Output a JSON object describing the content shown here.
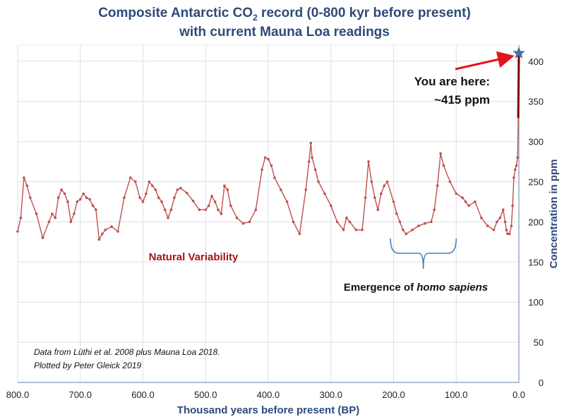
{
  "chart_data": {
    "type": "line",
    "title_line1_pre": "Composite Antarctic CO",
    "title_line1_sub": "2",
    "title_line1_post": " record (0-800 kyr before present)",
    "title_line2": "with current Mauna Loa readings",
    "xlabel": "Thousand years before present (BP)",
    "ylabel": "Concentration in ppm",
    "xlim": [
      800,
      0
    ],
    "ylim": [
      0,
      420
    ],
    "x_ticks": [
      "800.0",
      "700.0",
      "600.0",
      "500.0",
      "400.0",
      "300.0",
      "200.0",
      "100.0",
      "0.0"
    ],
    "x_tick_values": [
      800,
      700,
      600,
      500,
      400,
      300,
      200,
      100,
      0
    ],
    "y_ticks": [
      "0",
      "50",
      "100",
      "150",
      "200",
      "250",
      "300",
      "350",
      "400"
    ],
    "y_tick_values": [
      0,
      50,
      100,
      150,
      200,
      250,
      300,
      350,
      400
    ],
    "grid": true,
    "series_color": "#c0504d",
    "series": [
      {
        "x": [
          800,
          795,
          790,
          785,
          780,
          770,
          760,
          750,
          745,
          740,
          735,
          730,
          725,
          720,
          715,
          710,
          705,
          700,
          695,
          690,
          685,
          680,
          675,
          670,
          665,
          660,
          650,
          640,
          630,
          620,
          612,
          605,
          600,
          595,
          590,
          585,
          580,
          575,
          570,
          565,
          560,
          555,
          550,
          545,
          540,
          530,
          520,
          510,
          500,
          495,
          490,
          485,
          480,
          475,
          470,
          465,
          460,
          450,
          440,
          430,
          420,
          410,
          405,
          400,
          395,
          390,
          380,
          370,
          360,
          350,
          340,
          335,
          332,
          330,
          325,
          320,
          310,
          300,
          290,
          280,
          275,
          270,
          260,
          250,
          245,
          240,
          235,
          230,
          225,
          220,
          215,
          210,
          200,
          195,
          190,
          185,
          180,
          170,
          160,
          150,
          140,
          135,
          130,
          125,
          120,
          110,
          100,
          90,
          85,
          80,
          70,
          60,
          50,
          40,
          35,
          30,
          25,
          22,
          20,
          18,
          15,
          12,
          10,
          8,
          6,
          4,
          2,
          1,
          0
        ],
        "y": [
          188,
          205,
          255,
          245,
          230,
          210,
          180,
          200,
          210,
          205,
          230,
          240,
          235,
          225,
          200,
          210,
          225,
          228,
          235,
          230,
          228,
          220,
          215,
          178,
          185,
          190,
          194,
          188,
          230,
          255,
          250,
          230,
          225,
          235,
          250,
          245,
          240,
          230,
          225,
          215,
          205,
          215,
          230,
          240,
          242,
          236,
          226,
          215,
          215,
          220,
          232,
          225,
          215,
          210,
          245,
          240,
          220,
          205,
          198,
          200,
          215,
          265,
          280,
          278,
          270,
          255,
          240,
          225,
          200,
          185,
          240,
          275,
          298,
          280,
          265,
          250,
          235,
          220,
          200,
          190,
          205,
          200,
          190,
          190,
          230,
          275,
          250,
          230,
          215,
          235,
          245,
          250,
          225,
          210,
          200,
          190,
          185,
          190,
          195,
          198,
          200,
          215,
          245,
          285,
          270,
          250,
          235,
          230,
          225,
          220,
          225,
          205,
          195,
          190,
          200,
          205,
          215,
          200,
          190,
          185,
          185,
          195,
          220,
          255,
          265,
          270,
          280,
          330,
          410
        ]
      }
    ]
  },
  "annotations": {
    "here_line1": "You are here:",
    "here_line2": "~415 ppm",
    "natural": "Natural Variability",
    "homo_pre": "Emergence of ",
    "homo_italic": "homo sapiens",
    "homo_range_kyr": [
      205,
      100
    ],
    "credit_line1": "Data from Lüthi et al. 2008 plus Mauna Loa 2018.",
    "credit_line2": "Plotted by Peter Gleick 2019",
    "star_x": 0,
    "star_y": 410
  },
  "colors": {
    "title": "#2e4a7a",
    "series": "#c0504d",
    "grid": "#d9e1ec",
    "axis": "#7f98bc",
    "brace": "#4a7fb0",
    "arrow": "#e1161b",
    "vertical_rise": "#7a0000",
    "star": "#4a6fa5",
    "natural_text": "#a31515"
  }
}
